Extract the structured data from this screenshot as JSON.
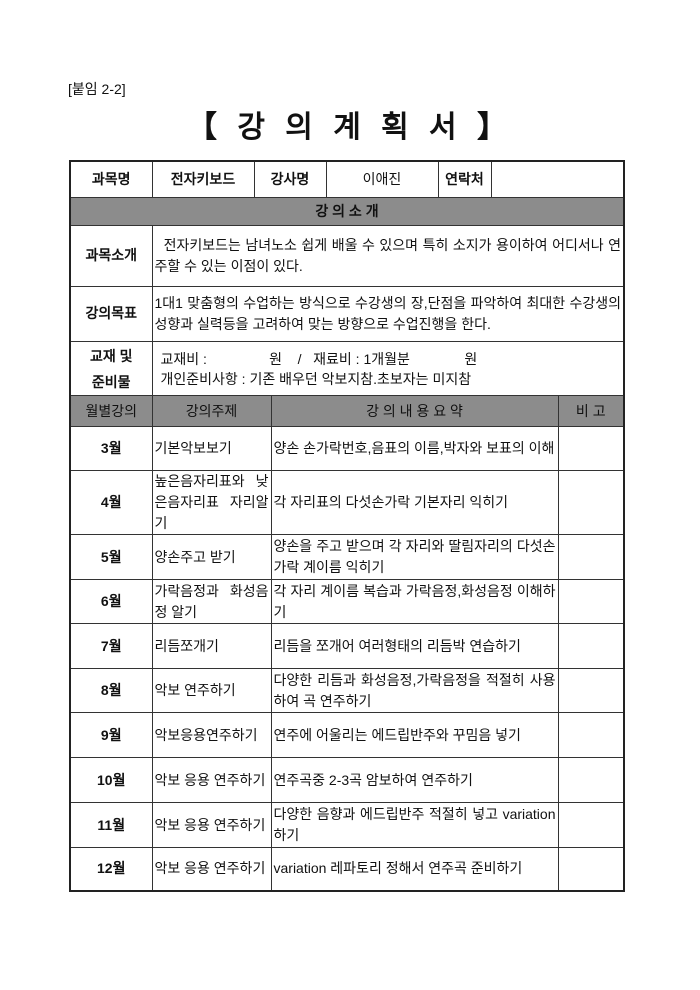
{
  "attachment_label": "[붙임 2-2]",
  "title": "【 강 의 계 획 서 】",
  "info": {
    "course_label": "과목명",
    "course_value": "전자키보드",
    "instructor_label": "강사명",
    "instructor_value": "이애진",
    "contact_label": "연락처",
    "contact_value": ""
  },
  "section_title": "강 의 소 개",
  "intro": {
    "label": "과목소개",
    "text": "  전자키보드는 남녀노소 쉽게 배울 수 있으며 특히 소지가 용이하여 어디서나 연주할 수 있는 이점이 있다."
  },
  "goal": {
    "label": "강의목표",
    "text": "1대1 맞춤형의 수업하는 방식으로 수강생의 장,단점을 파악하여 최대한 수강생의 성향과 실력등을 고려하여 맞는 방향으로 수업진행을 한다."
  },
  "materials": {
    "label_line1": "교재 및",
    "label_line2": "준비물",
    "line1": "교재비 :                원    /   재료비 : 1개월분              원",
    "line2": "개인준비사항 : 기존 배우던 악보지참.초보자는 미지참"
  },
  "schedule": {
    "headers": [
      "월별강의",
      "강의주제",
      "강 의 내 용 요 약",
      "비 고"
    ],
    "rows": [
      {
        "month": "3월",
        "topic": "기본악보보기",
        "summary": "양손 손가락번호,음표의 이름,박자와 보표의 이해",
        "note": ""
      },
      {
        "month": "4월",
        "topic": "높은음자리표와 낮은음자리표 자리알기",
        "summary": "각 자리표의 다섯손가락 기본자리 익히기",
        "note": ""
      },
      {
        "month": "5월",
        "topic": "양손주고 받기",
        "summary": "양손을 주고 받으며 각 자리와 딸림자리의 다섯손가락 계이름 익히기",
        "note": ""
      },
      {
        "month": "6월",
        "topic": "가락음정과 화성음정 알기",
        "summary": "각 자리 계이름 복습과 가락음정,화성음정 이해하기",
        "note": ""
      },
      {
        "month": "7월",
        "topic": "리듬쪼개기",
        "summary": "리듬을 쪼개어 여러형태의 리듬박 연습하기",
        "note": ""
      },
      {
        "month": "8월",
        "topic": "악보 연주하기",
        "summary": "다양한 리듬과 화성음정,가락음정을 적절히 사용하여 곡 연주하기",
        "note": ""
      },
      {
        "month": "9월",
        "topic": "악보응용연주하기",
        "summary": "연주에 어울리는 에드립반주와 꾸밈음 넣기",
        "note": ""
      },
      {
        "month": "10월",
        "topic": "악보 응용 연주하기",
        "summary": "연주곡중 2-3곡 암보하여 연주하기",
        "note": ""
      },
      {
        "month": "11월",
        "topic": "악보 응용 연주하기",
        "summary": "다양한 음향과 에드립반주 적절히 넣고 variation 하기",
        "note": ""
      },
      {
        "month": "12월",
        "topic": "악보 응용 연주하기",
        "summary": "variation 레파토리 정해서 연주곡 준비하기",
        "note": ""
      }
    ]
  }
}
